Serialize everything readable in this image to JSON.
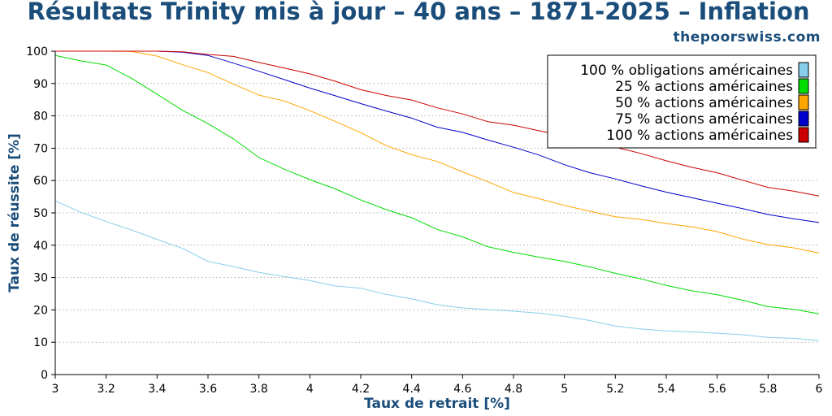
{
  "chart_data": {
    "type": "line",
    "title": "Résultats Trinity mis à jour – 40 ans – 1871-2025 – Inflation",
    "watermark": "thepoorswiss.com",
    "xlabel": "Taux de retrait [%]",
    "ylabel": "Taux de réussite [%]",
    "xlim": [
      3,
      6
    ],
    "ylim": [
      0,
      100
    ],
    "x_ticks": [
      "3",
      "3.2",
      "3.4",
      "3.6",
      "3.8",
      "4",
      "4.2",
      "4.4",
      "4.6",
      "4.8",
      "5",
      "5.2",
      "5.4",
      "5.6",
      "5.8",
      "6"
    ],
    "y_ticks": [
      "0",
      "10",
      "20",
      "30",
      "40",
      "50",
      "60",
      "70",
      "80",
      "90",
      "100"
    ],
    "grid": "horizontal dotted",
    "legend_position": "top-right",
    "x": [
      3.0,
      3.1,
      3.2,
      3.3,
      3.4,
      3.5,
      3.6,
      3.7,
      3.8,
      3.9,
      4.0,
      4.1,
      4.2,
      4.3,
      4.4,
      4.5,
      4.6,
      4.7,
      4.8,
      4.9,
      5.0,
      5.1,
      5.2,
      5.3,
      5.4,
      5.5,
      5.6,
      5.7,
      5.8,
      5.9,
      6.0
    ],
    "series": [
      {
        "name": "100 % obligations américaines",
        "color": "#87ceeb",
        "values": [
          53.7,
          50.2,
          47.3,
          44.7,
          41.8,
          39.0,
          35.0,
          33.4,
          31.6,
          30.3,
          29.1,
          27.4,
          26.7,
          24.8,
          23.4,
          21.6,
          20.6,
          20.1,
          19.6,
          19.0,
          18.0,
          16.7,
          15.0,
          14.1,
          13.5,
          13.2,
          12.8,
          12.3,
          11.5,
          11.2,
          10.5
        ]
      },
      {
        "name": "25 % actions américaines",
        "color": "#00dd00",
        "values": [
          98.7,
          97.0,
          95.7,
          91.6,
          86.7,
          81.7,
          77.6,
          72.9,
          67.1,
          63.5,
          60.3,
          57.4,
          54.0,
          51.0,
          48.5,
          44.9,
          42.6,
          39.5,
          37.8,
          36.3,
          35.0,
          33.3,
          31.3,
          29.6,
          27.6,
          25.9,
          24.7,
          23.0,
          21.0,
          20.2,
          18.8
        ]
      },
      {
        "name": "50 % actions américaines",
        "color": "#ffa500",
        "values": [
          100.0,
          100.0,
          100.0,
          99.9,
          98.5,
          95.8,
          93.4,
          89.8,
          86.4,
          84.6,
          81.6,
          78.3,
          74.8,
          70.8,
          68.0,
          65.9,
          62.7,
          59.6,
          56.3,
          54.4,
          52.3,
          50.5,
          48.8,
          48.0,
          46.7,
          45.7,
          44.2,
          41.9,
          40.2,
          39.2,
          37.6
        ]
      },
      {
        "name": "75 % actions américaines",
        "color": "#0000cc",
        "values": [
          100.0,
          100.0,
          100.0,
          100.0,
          100.0,
          99.7,
          98.7,
          96.3,
          93.8,
          91.2,
          88.6,
          86.2,
          83.8,
          81.5,
          79.3,
          76.5,
          74.9,
          72.5,
          70.3,
          67.9,
          64.9,
          62.4,
          60.5,
          58.4,
          56.4,
          54.7,
          53.0,
          51.3,
          49.5,
          48.2,
          47.0
        ]
      },
      {
        "name": "100 % actions américaines",
        "color": "#cc0000",
        "values": [
          100.0,
          100.0,
          100.0,
          100.0,
          100.0,
          99.8,
          99.0,
          98.4,
          96.5,
          94.8,
          93.0,
          90.7,
          88.1,
          86.3,
          84.9,
          82.5,
          80.6,
          78.2,
          77.1,
          75.4,
          73.8,
          72.3,
          70.3,
          68.4,
          66.1,
          64.1,
          62.4,
          60.1,
          57.9,
          56.7,
          55.2
        ]
      }
    ]
  }
}
